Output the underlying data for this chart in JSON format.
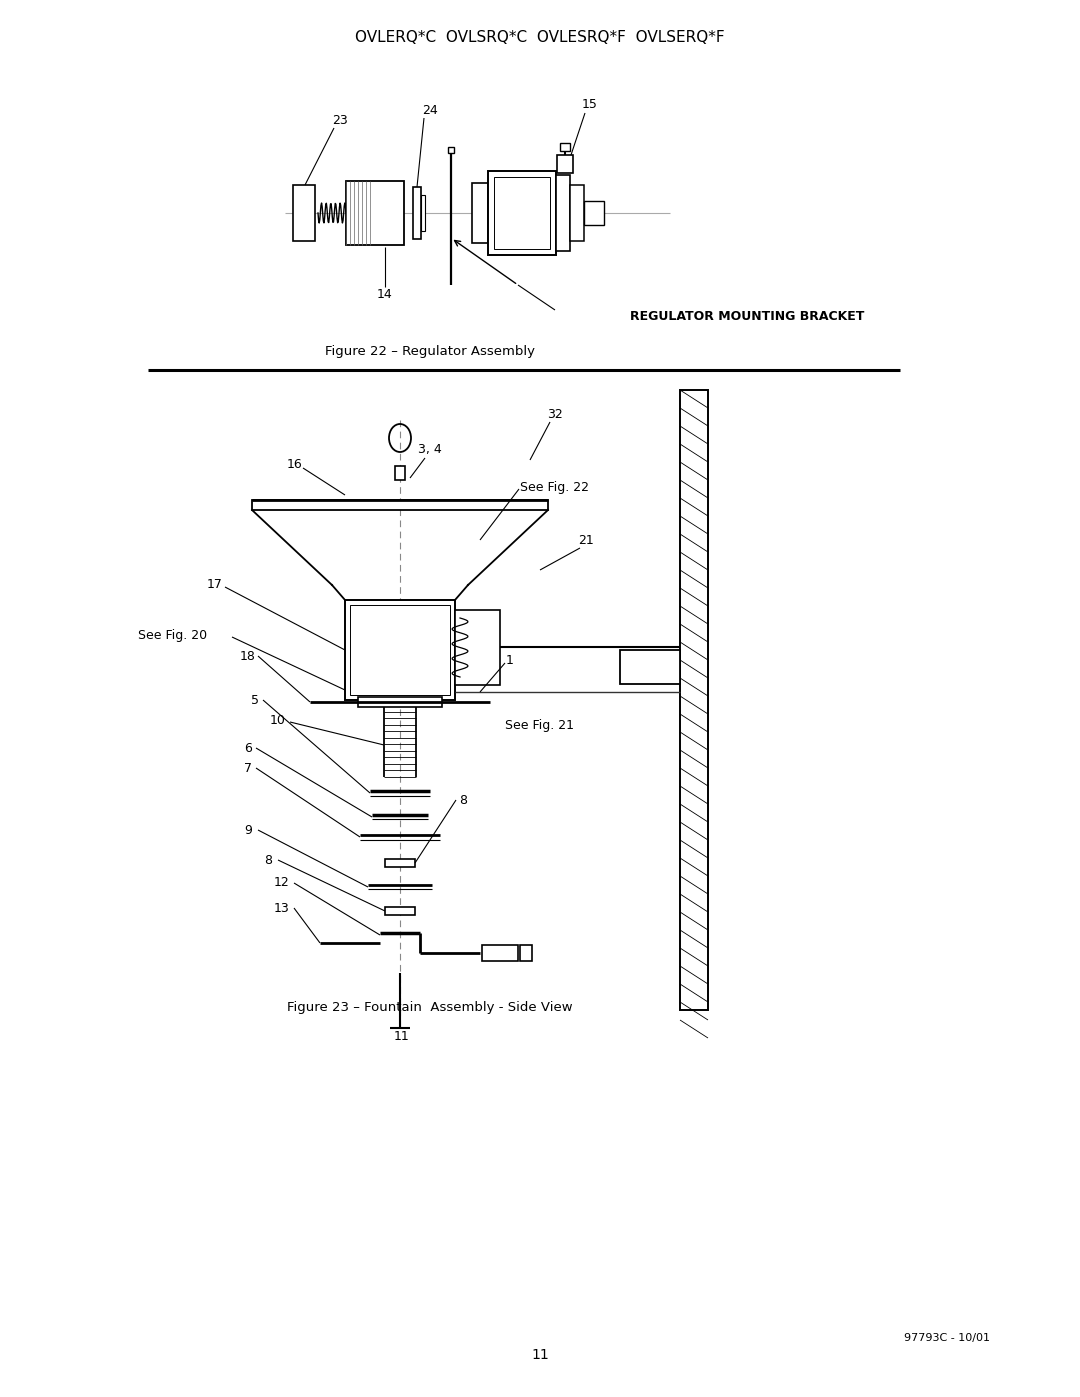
{
  "title": "OVLERQ*C  OVLSRQ*C  OVLESRQ*F  OVLSERQ*F",
  "fig22_caption": "Figure 22 – Regulator Assembly",
  "fig23_caption": "Figure 23 – Fountain  Assembly - Side View",
  "page_number": "11",
  "doc_number": "97793C - 10/01",
  "bg_color": "#ffffff",
  "line_color": "#000000",
  "regulator_label": "REGULATOR MOUNTING BRACKET"
}
